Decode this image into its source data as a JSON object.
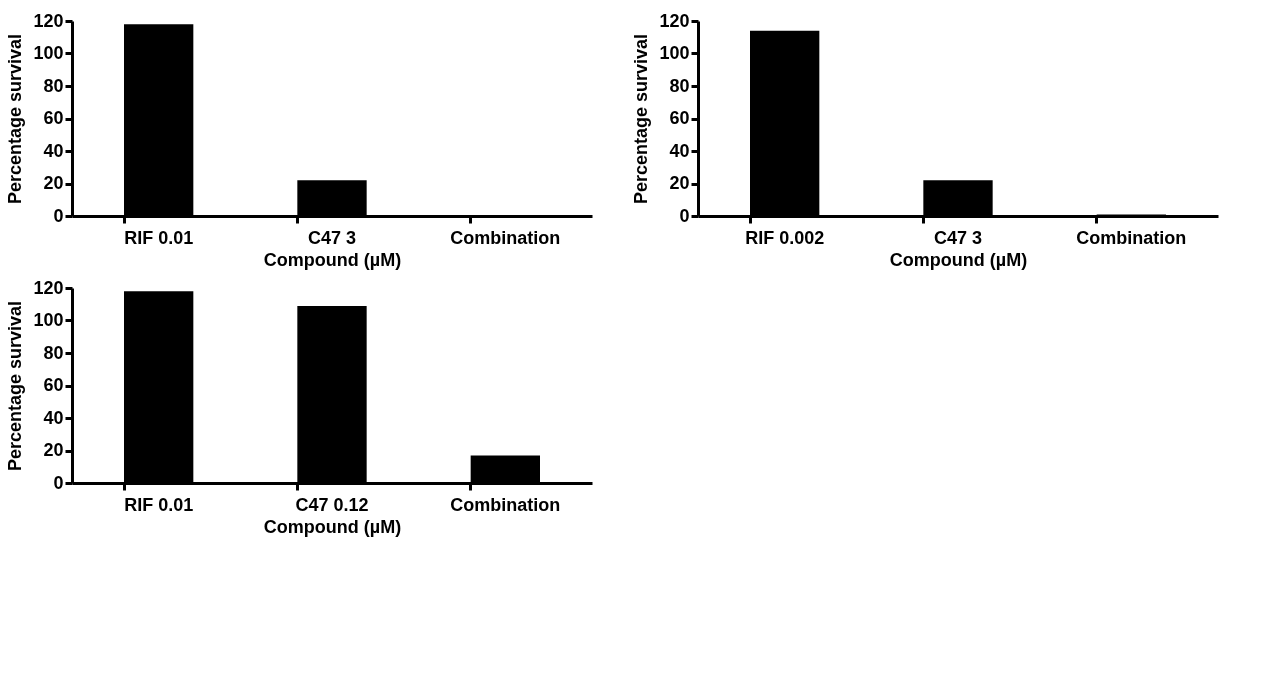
{
  "chart_data": [
    {
      "type": "bar",
      "categories": [
        "RIF 0.01",
        "C47 3",
        "Combination"
      ],
      "values": [
        118,
        22,
        0
      ],
      "color": "#000000",
      "xlabel": "Compound (µM)",
      "ylabel": "Percentage survival",
      "ylim": [
        0,
        120
      ],
      "yticks": [
        0,
        20,
        40,
        60,
        80,
        100,
        120
      ],
      "grid": false
    },
    {
      "type": "bar",
      "categories": [
        "RIF 0.002",
        "C47 3",
        "Combination"
      ],
      "values": [
        114,
        22,
        1
      ],
      "color": "#000000",
      "xlabel": "Compound (µM)",
      "ylabel": "Percentage survival",
      "ylim": [
        0,
        120
      ],
      "yticks": [
        0,
        20,
        40,
        60,
        80,
        100,
        120
      ],
      "grid": false
    },
    {
      "type": "bar",
      "categories": [
        "RIF 0.01",
        "C47 0.12",
        "Combination"
      ],
      "values": [
        118,
        109,
        17
      ],
      "color": "#000000",
      "xlabel": "Compound (µM)",
      "ylabel": "Percentage survival",
      "ylim": [
        0,
        120
      ],
      "yticks": [
        0,
        20,
        40,
        60,
        80,
        100,
        120
      ],
      "grid": false
    }
  ]
}
